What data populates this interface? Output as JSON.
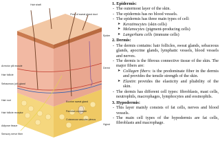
{
  "diagram": {
    "labels": [
      "Hair shaft",
      "Pore of sweat gland duct",
      "Epidermis",
      "Dermis",
      "Hypodermis",
      "Arrector pili muscle",
      "Hair follicle",
      "Sebaceous (oil) gland",
      "Hair root",
      "Hair follicle receptor",
      "Adipose tissue",
      "Sensory nerve fiber",
      "Eccrine sweat gland",
      "Pacinian corpuscle",
      "Cutaneous vascular plexus"
    ]
  },
  "sections": [
    {
      "heading": "1.  Epidermis:",
      "items": [
        {
          "text": "The outermost layer of the skin."
        },
        {
          "text": "The epidermis has no blood vessels."
        },
        {
          "text": "The epidermis has three main types of cell:",
          "subitems": [
            {
              "term": "Keratinocytes",
              "text": "(skin cells)"
            },
            {
              "term": "Melanocytes",
              "text": "(pigment-producing cells)"
            },
            {
              "term": "Langerhans cells",
              "text": "(immune cells)"
            }
          ]
        }
      ]
    },
    {
      "heading": "2.  Dermis:",
      "items": [
        {
          "text": "The dermis contains: hair follicles, sweat glands, sebaceous glands, apocrine glands, lymphatic vessels, blood vessels and nerves."
        },
        {
          "text": "The dermis is the fibrous connective tissue of the skin. The major fibers are:",
          "subitems": [
            {
              "term": "Collagen fibers:",
              "text": "is the predominate fiber in the dermis and provides the tensile strength of the skin."
            },
            {
              "term": "Elastin:",
              "text": "provides the elasticity and pliability of the skin."
            }
          ]
        },
        {
          "text": "The dermis has different cell types: fibroblasts, mast cells, neutrophils, macrophages, lymphocytes and eosinophils."
        }
      ]
    },
    {
      "heading": "3.  Hypodermis:",
      "items": [
        {
          "text": "This layer mainly consists of fat cells, nerves and blood vessels."
        },
        {
          "text": "The main cell types of the hypodermis are fat cells, fibroblasts and macrophage."
        }
      ]
    }
  ]
}
